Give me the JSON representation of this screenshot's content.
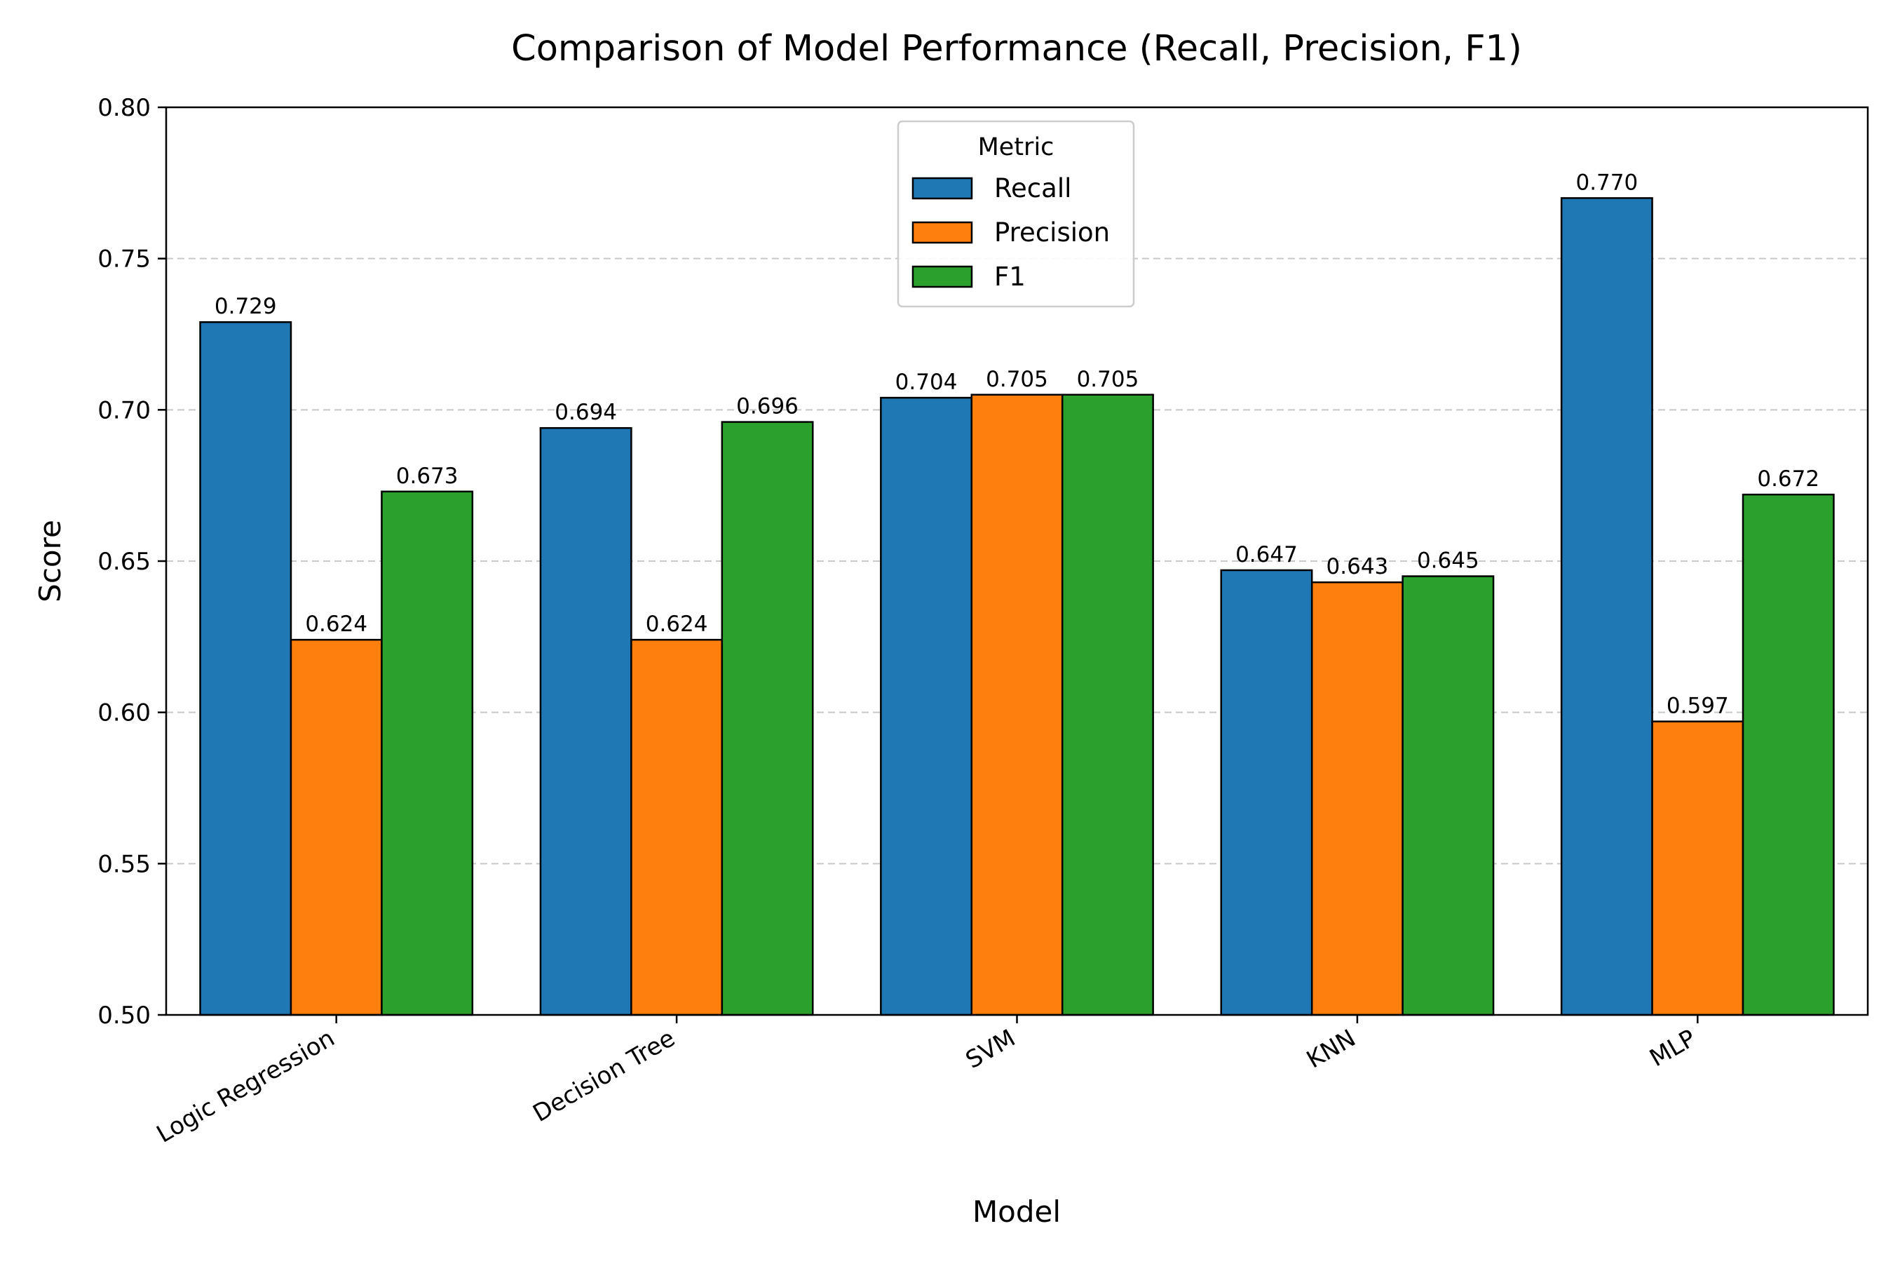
{
  "chart_data": {
    "type": "bar",
    "title": "Comparison of Model Performance (Recall, Precision, F1)",
    "xlabel": "Model",
    "ylabel": "Score",
    "ylim": [
      0.5,
      0.8
    ],
    "yticks": [
      "0.50",
      "0.55",
      "0.60",
      "0.65",
      "0.70",
      "0.75",
      "0.80"
    ],
    "categories": [
      "Logic Regression",
      "Decision Tree",
      "SVM",
      "KNN",
      "MLP"
    ],
    "series": [
      {
        "name": "Recall",
        "color": "#1f77b4",
        "values": [
          0.729,
          0.694,
          0.704,
          0.647,
          0.77
        ],
        "labels": [
          "0.729",
          "0.694",
          "0.704",
          "0.647",
          "0.770"
        ]
      },
      {
        "name": "Precision",
        "color": "#ff7f0e",
        "values": [
          0.624,
          0.624,
          0.705,
          0.643,
          0.597
        ],
        "labels": [
          "0.624",
          "0.624",
          "0.705",
          "0.643",
          "0.597"
        ]
      },
      {
        "name": "F1",
        "color": "#2ca02c",
        "values": [
          0.673,
          0.696,
          0.705,
          0.645,
          0.672
        ],
        "labels": [
          "0.673",
          "0.696",
          "0.705",
          "0.645",
          "0.672"
        ]
      }
    ],
    "legend": {
      "title": "Metric",
      "position": "upper center"
    },
    "grid": {
      "y": true,
      "style": "dashed"
    }
  }
}
